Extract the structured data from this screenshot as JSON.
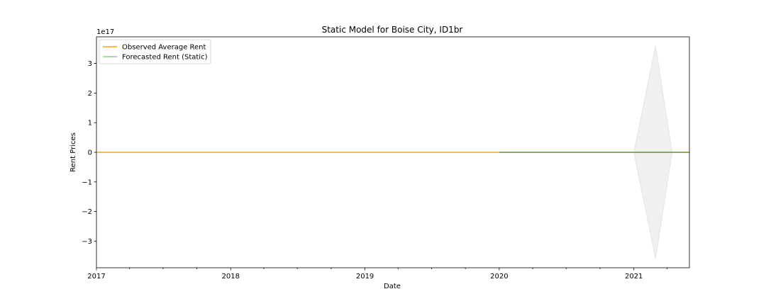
{
  "chart_data": {
    "type": "line",
    "title": "Static Model for Boise City, ID1br",
    "xlabel": "Date",
    "ylabel": "Rent Prices",
    "y_scale_label": "1e17",
    "xlim": [
      "2017-01-01",
      "2021-06-01"
    ],
    "ylim": [
      -3.9,
      3.9
    ],
    "y_unit": "1e17",
    "x_ticks": [
      {
        "date": "2017-01-01",
        "label": "2017"
      },
      {
        "date": "2018-01-01",
        "label": "2018"
      },
      {
        "date": "2019-01-01",
        "label": "2019"
      },
      {
        "date": "2020-01-01",
        "label": "2020"
      },
      {
        "date": "2021-01-01",
        "label": "2021"
      }
    ],
    "y_ticks": [
      {
        "value": 3,
        "label": "3"
      },
      {
        "value": 2,
        "label": "2"
      },
      {
        "value": 1,
        "label": "1"
      },
      {
        "value": 0,
        "label": "0"
      },
      {
        "value": -1,
        "label": "−1"
      },
      {
        "value": -2,
        "label": "−2"
      },
      {
        "value": -3,
        "label": "−3"
      }
    ],
    "series": [
      {
        "name": "Observed Average Rent",
        "color": "#ffa500",
        "x": [
          "2017-01-01",
          "2020-01-01"
        ],
        "y": [
          0,
          0
        ]
      },
      {
        "name": "Forecasted Rent (Static)",
        "color": "#6b8e23",
        "x": [
          "2020-01-01",
          "2021-06-01"
        ],
        "y": [
          0,
          0
        ]
      }
    ],
    "confidence_band": {
      "color": "#d3d3d3",
      "x": [
        "2021-01-01",
        "2021-03-01",
        "2021-04-15"
      ],
      "upper": [
        0,
        3.6,
        0
      ],
      "lower": [
        0,
        -3.6,
        0
      ]
    },
    "legend": {
      "placement": "top-left",
      "entries": [
        {
          "label": "Observed Average Rent",
          "color": "#ffa500"
        },
        {
          "label": "Forecasted Rent (Static)",
          "color": "#90c890"
        }
      ]
    },
    "grid": false
  }
}
